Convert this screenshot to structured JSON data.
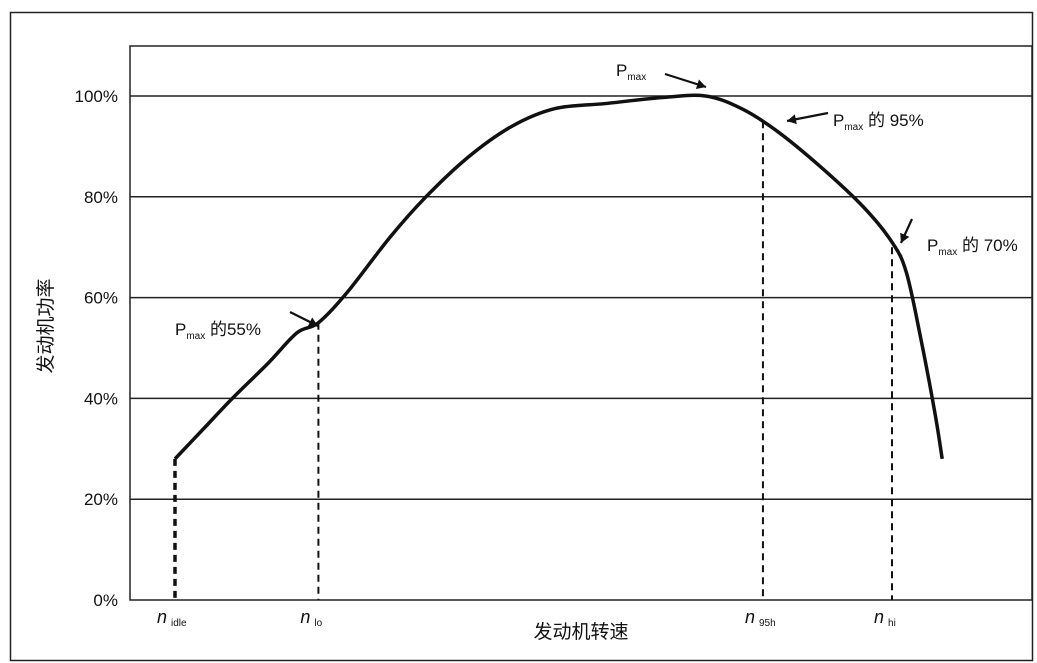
{
  "chart_data": {
    "type": "line",
    "title": "",
    "xlabel": "发动机转速",
    "ylabel": "发动机功率",
    "ylim": [
      0,
      110
    ],
    "yticks": [
      {
        "value": 0,
        "label": "0%"
      },
      {
        "value": 20,
        "label": "20%"
      },
      {
        "value": 40,
        "label": "40%"
      },
      {
        "value": 60,
        "label": "60%"
      },
      {
        "value": 80,
        "label": "80%"
      },
      {
        "value": 100,
        "label": "100%"
      }
    ],
    "grid": true,
    "series": [
      {
        "points": [
          {
            "x": 0.0,
            "y": 28
          },
          {
            "x": 0.04,
            "y": 34
          },
          {
            "x": 0.08,
            "y": 40
          },
          {
            "x": 0.13,
            "y": 47
          },
          {
            "x": 0.17,
            "y": 53
          },
          {
            "x": 0.2,
            "y": 55
          },
          {
            "x": 0.24,
            "y": 61
          },
          {
            "x": 0.3,
            "y": 72
          },
          {
            "x": 0.35,
            "y": 80
          },
          {
            "x": 0.41,
            "y": 88
          },
          {
            "x": 0.47,
            "y": 94
          },
          {
            "x": 0.53,
            "y": 97.5
          },
          {
            "x": 0.6,
            "y": 98.5
          },
          {
            "x": 0.68,
            "y": 99.7
          },
          {
            "x": 0.74,
            "y": 100
          },
          {
            "x": 0.79,
            "y": 97.5
          },
          {
            "x": 0.84,
            "y": 93
          },
          {
            "x": 0.9,
            "y": 86
          },
          {
            "x": 0.96,
            "y": 78
          },
          {
            "x": 1.0,
            "y": 71
          },
          {
            "x": 1.02,
            "y": 65
          },
          {
            "x": 1.04,
            "y": 52
          },
          {
            "x": 1.06,
            "y": 37
          },
          {
            "x": 1.07,
            "y": 28
          }
        ]
      }
    ],
    "markers": [
      {
        "name": "idle",
        "base": "n",
        "sub": "idle",
        "x": 0.0,
        "y": 28
      },
      {
        "name": "lo",
        "base": "n",
        "sub": "lo",
        "x": 0.2,
        "y": 55
      },
      {
        "name": "95h",
        "base": "n",
        "sub": "95h",
        "x": 0.82,
        "y": 95
      },
      {
        "name": "hi",
        "base": "n",
        "sub": "hi",
        "x": 1.0,
        "y": 70
      }
    ],
    "annotations": [
      {
        "name": "pmax",
        "base": "P",
        "sub": "max",
        "rest": "",
        "x": 0.74,
        "y": 100
      },
      {
        "name": "p95",
        "base": "P",
        "sub": "max",
        "rest": " 的 95%",
        "x": 0.82,
        "y": 95
      },
      {
        "name": "p70",
        "base": "P",
        "sub": "max",
        "rest": " 的 70%",
        "x": 1.0,
        "y": 70
      },
      {
        "name": "p55",
        "base": "P",
        "sub": "max",
        "rest": " 的55%",
        "x": 0.2,
        "y": 55
      }
    ]
  }
}
